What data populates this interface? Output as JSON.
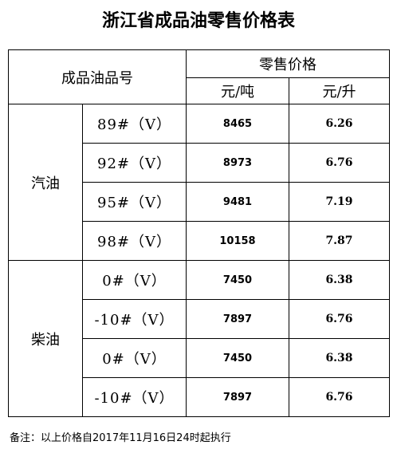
{
  "title": "浙江省成品油零售价格表",
  "table": {
    "header": {
      "product": "成品油品号",
      "retail": "零售价格",
      "units": [
        "元/吨",
        "元/升"
      ]
    },
    "groups": [
      {
        "name": "汽油",
        "rows": [
          [
            "89#（Ⅴ）",
            8465,
            6.26
          ],
          [
            "92#（Ⅴ）",
            8973,
            6.76
          ],
          [
            "95#（Ⅴ）",
            9481,
            7.19
          ],
          [
            "98#（Ⅴ）",
            10158,
            7.87
          ]
        ]
      },
      {
        "name": "柴油",
        "rows": [
          [
            "0#（V）",
            7450,
            6.38
          ],
          [
            "-10#（V）",
            7897,
            6.76
          ],
          [
            "0#（V）",
            7450,
            6.38
          ],
          [
            "-10#（V）",
            7897,
            6.76
          ]
        ]
      }
    ]
  },
  "note": "备注：以上价格自2017年11月16日24时起执行"
}
